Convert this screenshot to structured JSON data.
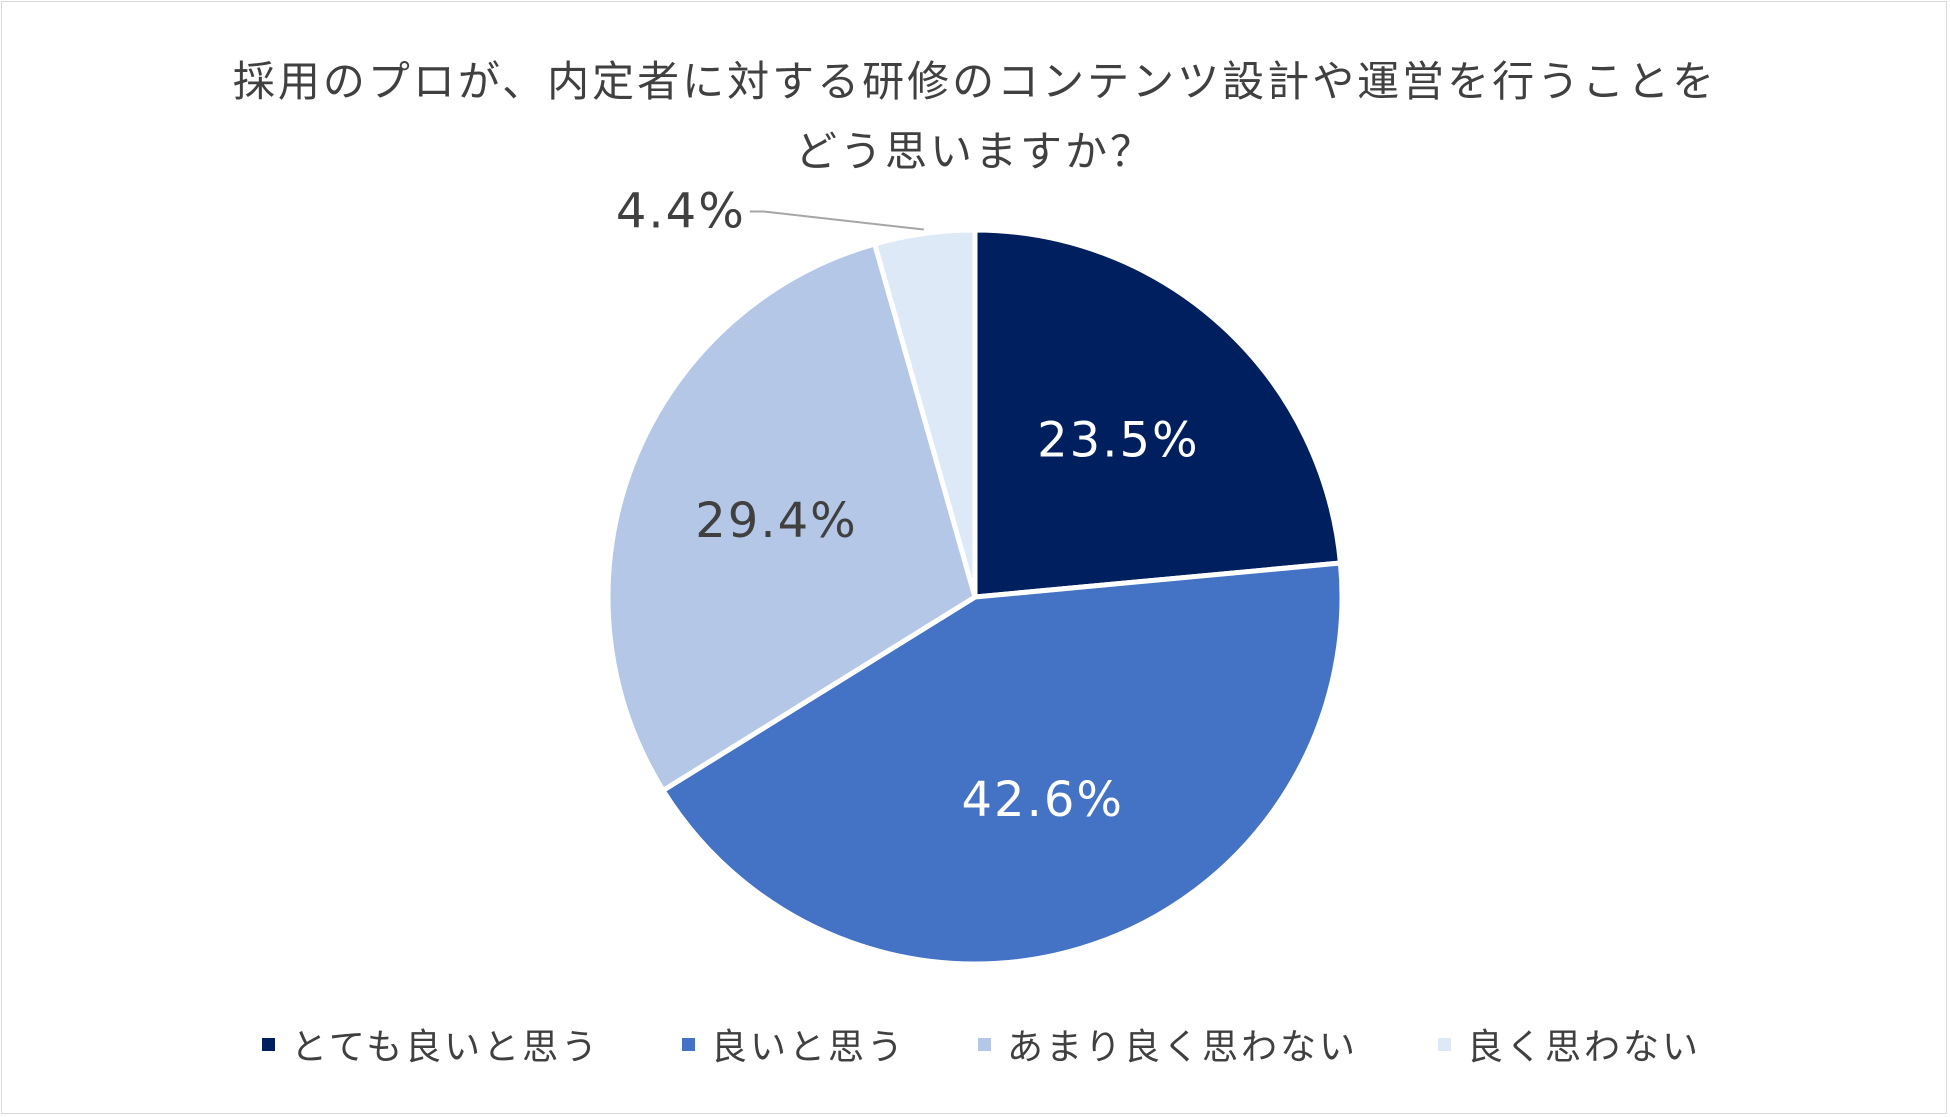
{
  "chart_data": {
    "type": "pie",
    "title_lines": [
      "採用のプロが、内定者に対する研修のコンテンツ設計や運営を行うことを",
      "どう思いますか？"
    ],
    "categories": [
      "とても良いと思う",
      "良いと思う",
      "あまり良く思わない",
      "良く思わない"
    ],
    "values": [
      23.5,
      42.6,
      29.4,
      4.4
    ],
    "labels": [
      "23.5%",
      "42.6%",
      "29.4%",
      "4.4%"
    ],
    "colors": [
      "#001f5f",
      "#4472c4",
      "#b4c7e7",
      "#dde9f7"
    ],
    "label_colors": [
      "#ffffff",
      "#ffffff",
      "#404040",
      "#404040"
    ],
    "start_angle": "12 o'clock",
    "direction": "clockwise",
    "legend_position": "bottom"
  }
}
